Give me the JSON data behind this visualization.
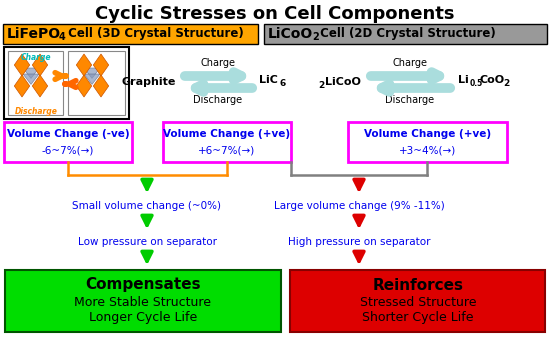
{
  "title": "Cyclic Stresses on Cell Components",
  "lfp_bg": "#FFA500",
  "lco_bg": "#999999",
  "pink_border": "#FF00FF",
  "orange_border": "#FF8C00",
  "gray_border": "#888888",
  "green_arrow": "#00CC00",
  "red_arrow": "#DD0000",
  "blue_text": "#0000EE",
  "vol_box1_text1": "Volume Change (-ve)",
  "vol_box1_text2": "-6~7%(→)",
  "vol_box2_text1": "Volume Change (+ve)",
  "vol_box2_text2": "+6~7%(→)",
  "vol_box3_text1": "Volume Change (+ve)",
  "vol_box3_text2": "+3~4%(→)",
  "small_vol_text": "Small volume change (~0%)",
  "large_vol_text": "Large volume change (9% -11%)",
  "low_press_text": "Low pressure on separator",
  "high_press_text": "High pressure on separator",
  "compensates_title": "Compensates",
  "compensates_sub1": "More Stable Structure",
  "compensates_sub2": "Longer Cycle Life",
  "reinforces_title": "Reinforces",
  "reinforces_sub1": "Stressed Structure",
  "reinforces_sub2": "Shorter Cycle Life",
  "green_box_bg": "#00DD00",
  "red_box_bg": "#DD0000",
  "arrow_color": "#AADDDD"
}
